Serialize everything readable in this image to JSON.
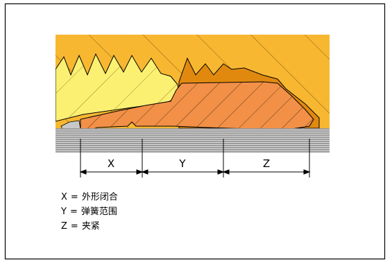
{
  "diagram": {
    "dimensions": [
      {
        "key": "X",
        "label": "X"
      },
      {
        "key": "Y",
        "label": "Y"
      },
      {
        "key": "Z",
        "label": "Z"
      }
    ],
    "legend": [
      {
        "symbol": "X",
        "text": "外形闭合"
      },
      {
        "symbol": "Y",
        "text": "弹簧范围"
      },
      {
        "symbol": "Z",
        "text": "夹紧"
      }
    ],
    "legend_separator": "=",
    "colors": {
      "background_material": "#f7b731",
      "thread_light": "#fbf072",
      "spring_band": "#e1890f",
      "clamp_body": "#f29048",
      "base_lines": "#5a5a5a",
      "outline": "#000000"
    }
  }
}
